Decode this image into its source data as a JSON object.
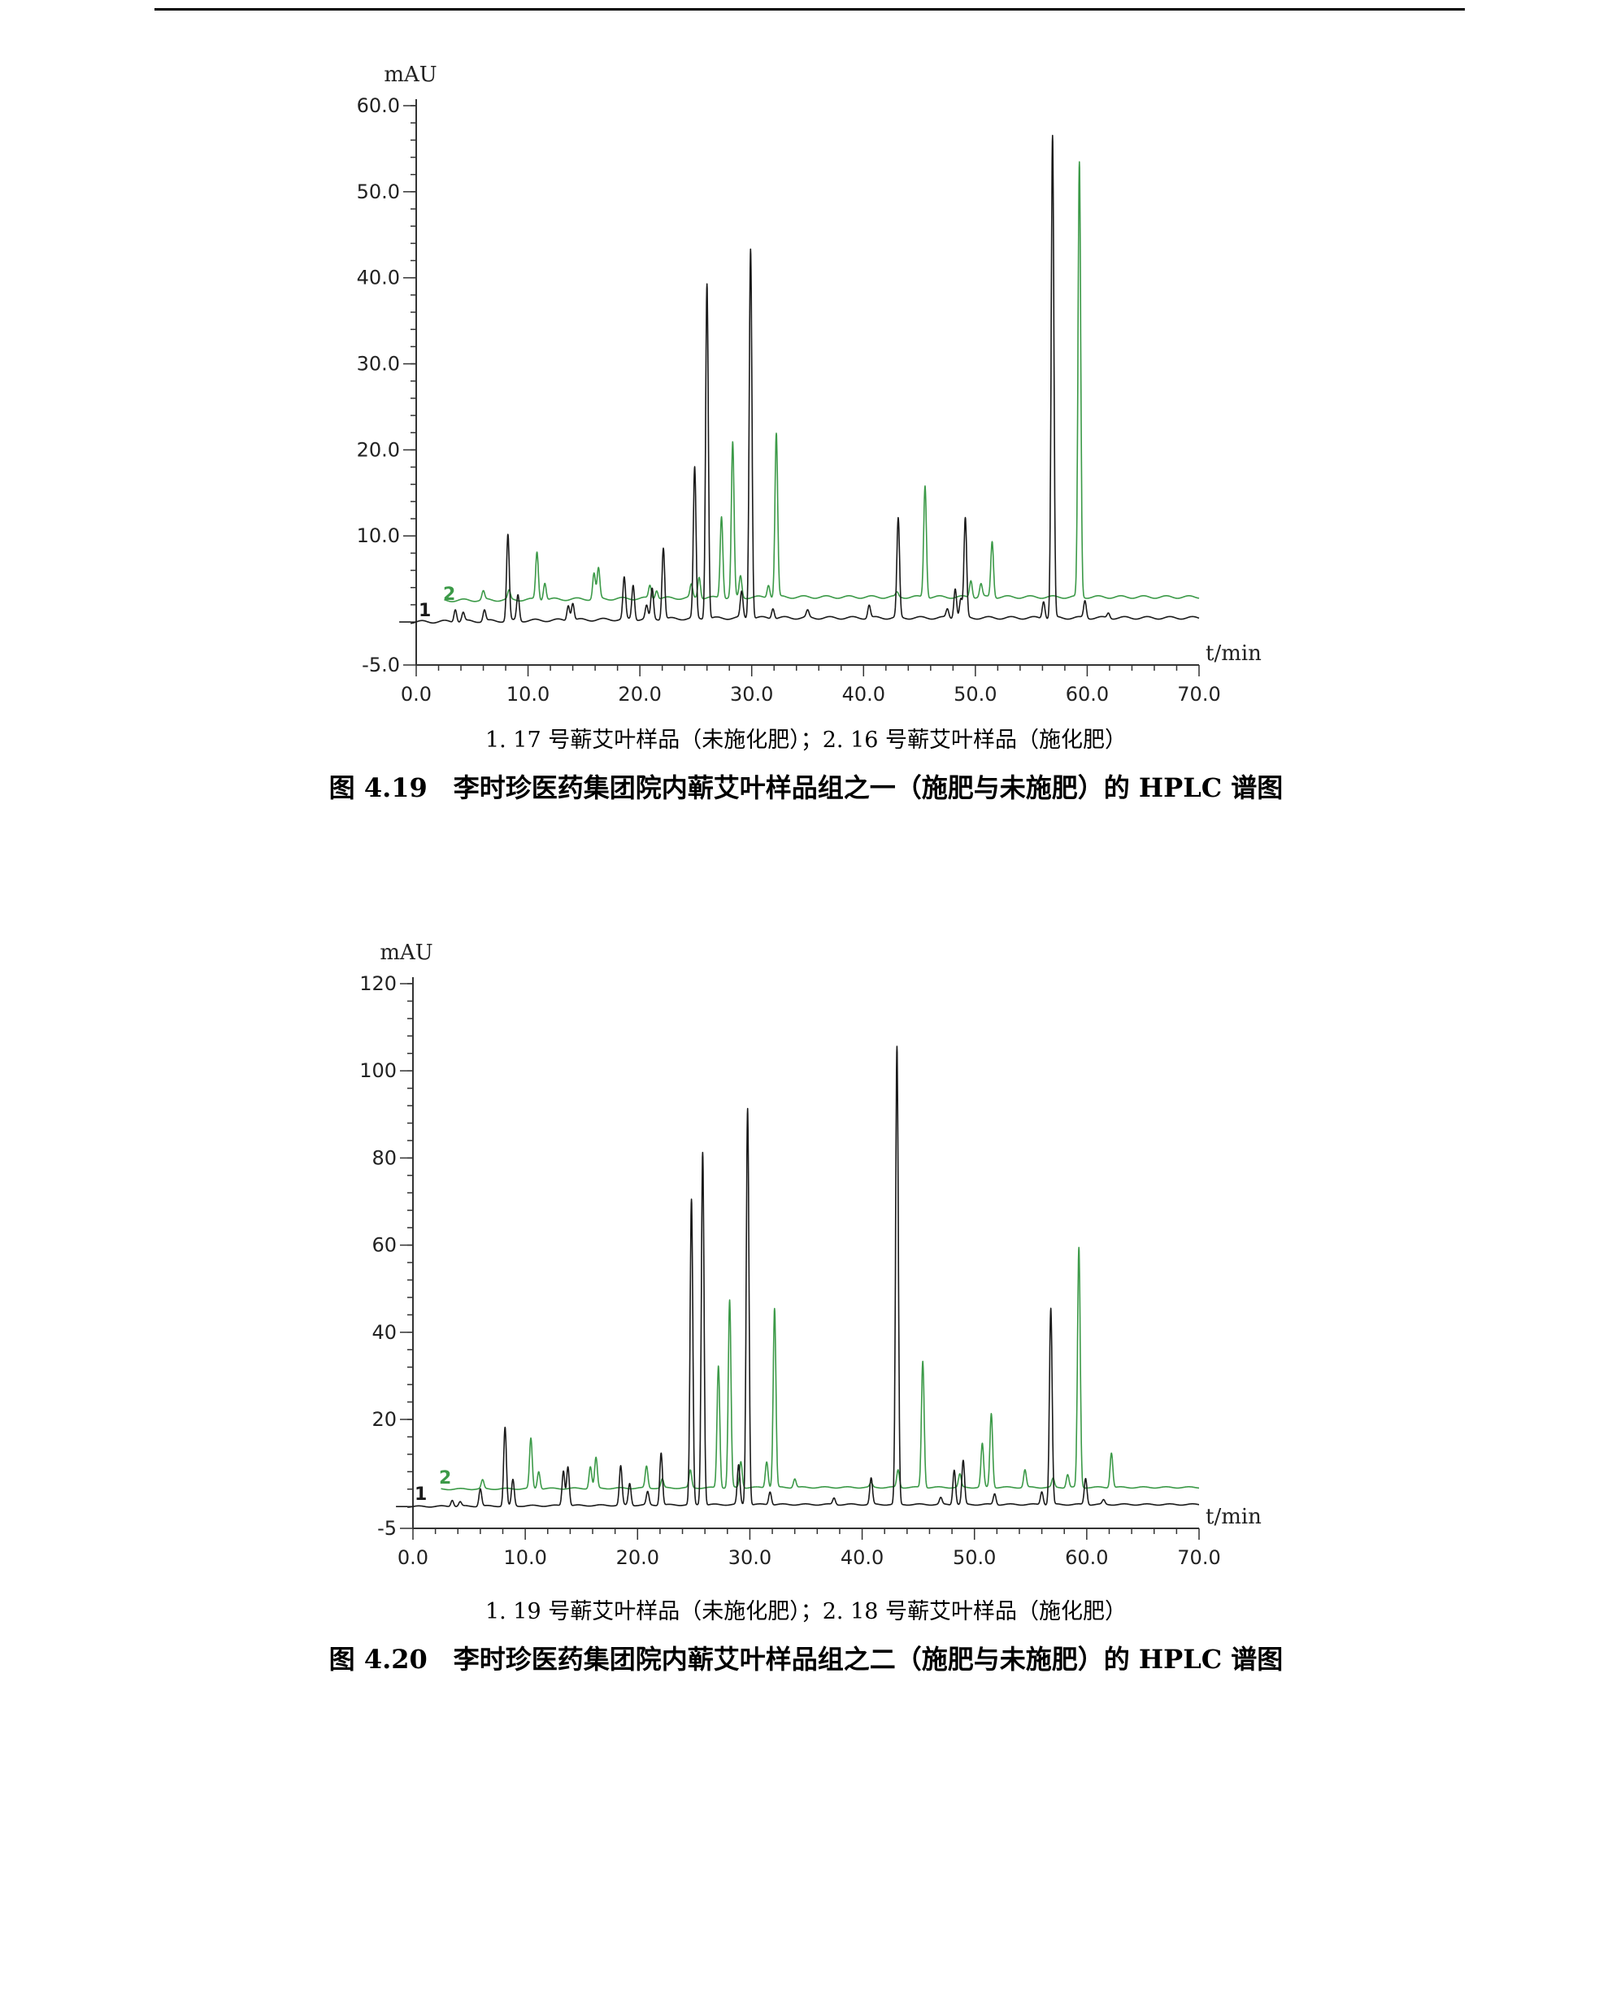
{
  "page": {
    "header_rule": true
  },
  "charts": [
    {
      "type": "line",
      "ylabel": "mAU",
      "xlabel": "t/min",
      "xlim": [
        0,
        70
      ],
      "ylim": [
        -5,
        60
      ],
      "x_ticks": [
        0,
        10,
        20,
        30,
        40,
        50,
        60,
        70
      ],
      "x_tick_labels": [
        "0.0",
        "10.0",
        "20.0",
        "30.0",
        "40.0",
        "50.0",
        "60.0",
        "70.0"
      ],
      "y_ticks": [
        -5,
        10,
        20,
        30,
        40,
        50,
        60
      ],
      "y_tick_labels": [
        "-5.0",
        "10.0",
        "20.0",
        "30.0",
        "40.0",
        "50.0",
        "60.0"
      ],
      "series": [
        {
          "name": "1",
          "color": "#1a1a1a",
          "baseline": 0,
          "start_x": -0.5,
          "start_y": 0,
          "peaks": [
            [
              3.5,
              1.5
            ],
            [
              4.2,
              1.0
            ],
            [
              6.1,
              1.3
            ],
            [
              8.2,
              10.0
            ],
            [
              9.1,
              3.0
            ],
            [
              13.6,
              1.8
            ],
            [
              14.0,
              2.0
            ],
            [
              18.6,
              4.8
            ],
            [
              19.4,
              4.0
            ],
            [
              20.6,
              1.5
            ],
            [
              21.1,
              3.5
            ],
            [
              22.1,
              8.3
            ],
            [
              24.9,
              17.5
            ],
            [
              26.0,
              39.0
            ],
            [
              29.1,
              3.0
            ],
            [
              29.9,
              43.0
            ],
            [
              31.9,
              1.2
            ],
            [
              35.0,
              0.8
            ],
            [
              40.5,
              1.5
            ],
            [
              43.1,
              11.5
            ],
            [
              47.5,
              1.0
            ],
            [
              48.2,
              3.5
            ],
            [
              48.7,
              2.2
            ],
            [
              49.1,
              11.5
            ],
            [
              56.1,
              2.0
            ],
            [
              56.9,
              56.0
            ],
            [
              59.8,
              2.0
            ],
            [
              61.9,
              0.6
            ]
          ]
        },
        {
          "name": "2",
          "color": "#3c9a48",
          "baseline": 2.5,
          "start_x": 2.5,
          "start_y": 2.5,
          "peaks": [
            [
              6.0,
              3.5
            ],
            [
              6.5,
              2.0
            ],
            [
              8.3,
              3.5
            ],
            [
              10.8,
              8.0
            ],
            [
              11.5,
              4.5
            ],
            [
              15.9,
              5.5
            ],
            [
              16.3,
              6.0
            ],
            [
              20.9,
              4.0
            ],
            [
              21.5,
              3.5
            ],
            [
              24.6,
              4.0
            ],
            [
              25.3,
              5.0
            ],
            [
              27.3,
              12.0
            ],
            [
              28.3,
              20.5
            ],
            [
              29.0,
              5.0
            ],
            [
              31.5,
              4.0
            ],
            [
              32.2,
              21.5
            ],
            [
              34.2,
              1.5
            ],
            [
              37.5,
              1.2
            ],
            [
              40.8,
              1.5
            ],
            [
              43.0,
              3.0
            ],
            [
              45.5,
              15.5
            ],
            [
              49.6,
              4.5
            ],
            [
              50.5,
              4.0
            ],
            [
              51.5,
              9.0
            ],
            [
              55.0,
              1.0
            ],
            [
              58.3,
              2.5
            ],
            [
              59.3,
              53.0
            ],
            [
              62.2,
              2.5
            ],
            [
              64.0,
              1.0
            ]
          ]
        }
      ]
    },
    {
      "type": "line",
      "ylabel": "mAU",
      "xlabel": "t/min",
      "xlim": [
        0,
        70
      ],
      "ylim": [
        -5,
        120
      ],
      "x_ticks": [
        0,
        10,
        20,
        30,
        40,
        50,
        60,
        70
      ],
      "x_tick_labels": [
        "0.0",
        "10.0",
        "20.0",
        "30.0",
        "40.0",
        "50.0",
        "60.0",
        "70.0"
      ],
      "y_ticks": [
        -5,
        20,
        40,
        60,
        80,
        100,
        120
      ],
      "y_tick_labels": [
        "-5",
        "20",
        "40",
        "60",
        "80",
        "100",
        "120"
      ],
      "series": [
        {
          "name": "1",
          "color": "#1a1a1a",
          "baseline": 0,
          "start_x": -0.5,
          "start_y": 0,
          "peaks": [
            [
              3.5,
              1.5
            ],
            [
              4.2,
              1.0
            ],
            [
              6.0,
              4.0
            ],
            [
              8.2,
              18.0
            ],
            [
              8.9,
              6.0
            ],
            [
              13.4,
              8.0
            ],
            [
              13.8,
              9.0
            ],
            [
              18.5,
              9.0
            ],
            [
              19.3,
              5.0
            ],
            [
              20.9,
              3.0
            ],
            [
              22.1,
              12.0
            ],
            [
              24.8,
              70.0
            ],
            [
              25.8,
              81.0
            ],
            [
              29.0,
              9.0
            ],
            [
              29.8,
              91.0
            ],
            [
              31.8,
              3.0
            ],
            [
              37.5,
              1.5
            ],
            [
              40.8,
              6.0
            ],
            [
              43.1,
              105.0
            ],
            [
              47.0,
              1.5
            ],
            [
              48.2,
              8.0
            ],
            [
              49.0,
              10.0
            ],
            [
              51.8,
              2.5
            ],
            [
              56.0,
              3.0
            ],
            [
              56.8,
              45.0
            ],
            [
              59.9,
              6.0
            ],
            [
              61.5,
              1.0
            ]
          ]
        },
        {
          "name": "2",
          "color": "#3c9a48",
          "baseline": 4.0,
          "start_x": 2.5,
          "start_y": 4.0,
          "peaks": [
            [
              6.2,
              6.0
            ],
            [
              8.4,
              4.0
            ],
            [
              10.5,
              15.5
            ],
            [
              11.2,
              8.0
            ],
            [
              15.8,
              9.0
            ],
            [
              16.3,
              11.0
            ],
            [
              20.8,
              9.0
            ],
            [
              22.2,
              6.0
            ],
            [
              24.7,
              8.0
            ],
            [
              27.2,
              32.0
            ],
            [
              28.2,
              47.0
            ],
            [
              29.2,
              10.0
            ],
            [
              31.5,
              10.0
            ],
            [
              32.2,
              45.0
            ],
            [
              34.0,
              6.0
            ],
            [
              40.8,
              5.0
            ],
            [
              43.2,
              8.0
            ],
            [
              45.4,
              33.0
            ],
            [
              48.7,
              7.0
            ],
            [
              50.7,
              14.0
            ],
            [
              51.5,
              21.0
            ],
            [
              54.5,
              8.0
            ],
            [
              57.0,
              6.0
            ],
            [
              58.3,
              7.0
            ],
            [
              59.3,
              59.0
            ],
            [
              62.2,
              12.0
            ]
          ]
        }
      ]
    }
  ],
  "captions": [
    {
      "legend": "1. 17 号蕲艾叶样品（未施化肥）；2. 16 号蕲艾叶样品（施化肥）",
      "title": "图 4.19　李时珍医药集团院内蕲艾叶样品组之一（施肥与未施肥）的 HPLC 谱图"
    },
    {
      "legend": "1. 19 号蕲艾叶样品（未施化肥）；2. 18 号蕲艾叶样品（施化肥）",
      "title": "图 4.20　李时珍医药集团院内蕲艾叶样品组之二（施肥与未施肥）的 HPLC 谱图"
    }
  ]
}
